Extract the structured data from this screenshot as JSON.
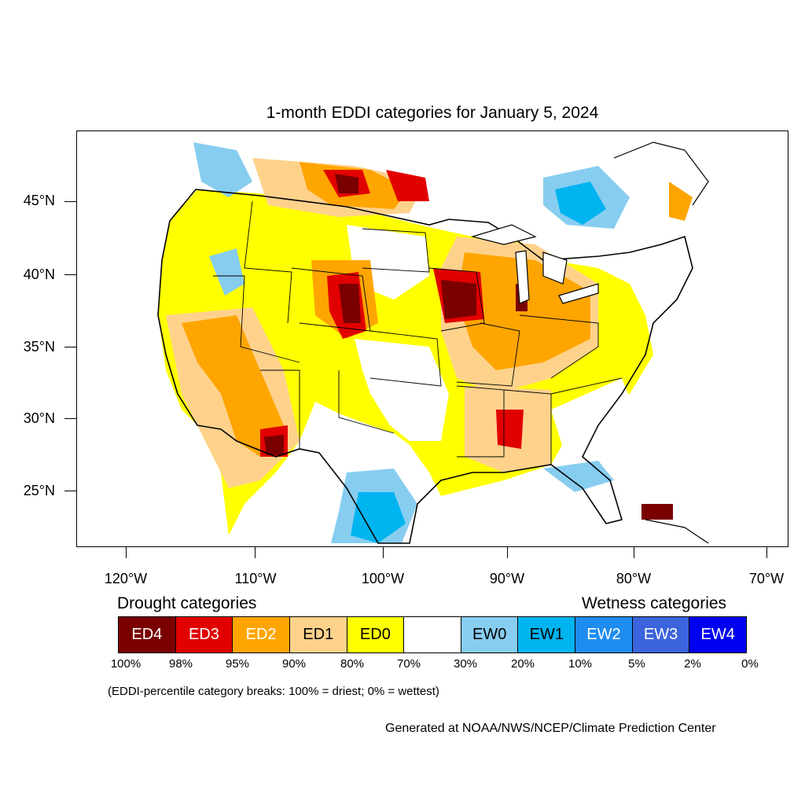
{
  "title": "1-month EDDI categories for January 5, 2024",
  "axes": {
    "lat_labels": [
      "45°N",
      "40°N",
      "35°N",
      "30°N",
      "25°N"
    ],
    "lon_labels": [
      "120°W",
      "110°W",
      "100°W",
      "90°W",
      "80°W",
      "70°W"
    ]
  },
  "legend": {
    "drought_heading": "Drought categories",
    "wetness_heading": "Wetness categories",
    "categories": [
      {
        "label": "ED4",
        "color": "#7a0000",
        "text_color": "#ffffff"
      },
      {
        "label": "ED3",
        "color": "#e10000",
        "text_color": "#ffffff"
      },
      {
        "label": "ED2",
        "color": "#ffa500",
        "text_color": "#ffffff"
      },
      {
        "label": "ED1",
        "color": "#ffd28c",
        "text_color": "#000000"
      },
      {
        "label": "ED0",
        "color": "#ffff00",
        "text_color": "#000000"
      },
      {
        "label": "",
        "color": "#ffffff",
        "text_color": "#000000"
      },
      {
        "label": "EW0",
        "color": "#87cdf0",
        "text_color": "#000000"
      },
      {
        "label": "EW1",
        "color": "#00b4f0",
        "text_color": "#000000"
      },
      {
        "label": "EW2",
        "color": "#1e8cf0",
        "text_color": "#ffffff"
      },
      {
        "label": "EW3",
        "color": "#3c64dc",
        "text_color": "#ffffff"
      },
      {
        "label": "EW4",
        "color": "#0000f0",
        "text_color": "#ffffff"
      }
    ],
    "percentiles": [
      "100%",
      "98%",
      "95%",
      "90%",
      "80%",
      "70%",
      "30%",
      "20%",
      "10%",
      "5%",
      "2%",
      "0%"
    ],
    "breaks_note": "(EDDI-percentile category breaks: 100% = driest; 0% = wettest)"
  },
  "credit": "Generated at NOAA/NWS/NCEP/Climate Prediction Center",
  "colors": {
    "ED4": "#7a0000",
    "ED3": "#e10000",
    "ED2": "#ffa500",
    "ED1": "#ffd28c",
    "ED0": "#ffff00",
    "EW0": "#87cdf0",
    "EW1": "#00b4f0",
    "EW2": "#1e8cf0",
    "EW3": "#3c64dc",
    "EW4": "#0000f0"
  }
}
